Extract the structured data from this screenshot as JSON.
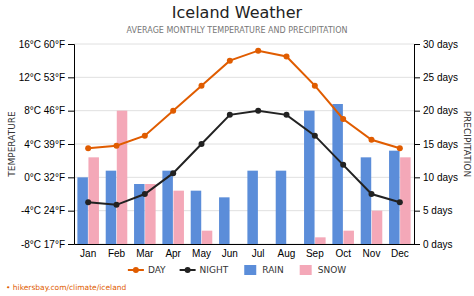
{
  "chart_data": {
    "type": "bar",
    "title": "Iceland Weather",
    "subtitle": "AVERAGE MONTHLY TEMPERATURE AND PRECIPITATION",
    "y_label": "TEMPERATURE",
    "y2_label": "PRECIPITATION",
    "annotations": [
      "• hikersbay.com/climate/iceland"
    ],
    "categories": [
      "Jan",
      "Feb",
      "Mar",
      "Apr",
      "May",
      "Jun",
      "Jul",
      "Aug",
      "Sep",
      "Oct",
      "Nov",
      "Dec"
    ],
    "series": [
      {
        "name": "DAY",
        "type": "line",
        "color": "#e05c00",
        "marker": "circle",
        "line_style": "solid",
        "values": [
          3.5,
          3.8,
          5.0,
          8.0,
          11.0,
          14.0,
          15.2,
          14.5,
          11.0,
          7.0,
          4.5,
          3.5
        ]
      },
      {
        "name": "NIGHT",
        "type": "line",
        "color": "#222222",
        "marker": "circle",
        "line_style": "solid",
        "values": [
          -3.0,
          -3.3,
          -2.0,
          0.5,
          4.0,
          7.5,
          8.0,
          7.5,
          5.0,
          1.5,
          -2.0,
          -3.0
        ]
      },
      {
        "name": "RAIN",
        "type": "bar",
        "axis": "y2",
        "color": "#5b8dd9",
        "values": [
          10,
          11,
          9,
          11,
          8,
          7,
          11,
          11,
          20,
          21,
          13,
          14
        ]
      },
      {
        "name": "SNOW",
        "type": "bar",
        "axis": "y2",
        "color": "#f4a8b8",
        "values": [
          13,
          20,
          9,
          8,
          2,
          0,
          0,
          0,
          1,
          2,
          5,
          13
        ]
      }
    ],
    "ylim": [
      -8,
      16
    ],
    "yticks": [
      {
        "value": -8,
        "label": "-8°C 17°F"
      },
      {
        "value": -4,
        "label": "-4°C 24°F"
      },
      {
        "value": 0,
        "label": "0°C 32°F"
      },
      {
        "value": 4,
        "label": "4°C 39°F"
      },
      {
        "value": 8,
        "label": "8°C 46°F"
      },
      {
        "value": 12,
        "label": "12°C 53°F"
      },
      {
        "value": 16,
        "label": "16°C 60°F"
      }
    ],
    "y2lim": [
      0,
      30
    ],
    "y2ticks": [
      {
        "value": 0,
        "label": "0 days"
      },
      {
        "value": 5,
        "label": "5 days"
      },
      {
        "value": 10,
        "label": "10 days"
      },
      {
        "value": 15,
        "label": "15 days"
      },
      {
        "value": 20,
        "label": "20 days"
      },
      {
        "value": 25,
        "label": "25 days"
      },
      {
        "value": 30,
        "label": "30 days"
      }
    ],
    "grid": true
  }
}
